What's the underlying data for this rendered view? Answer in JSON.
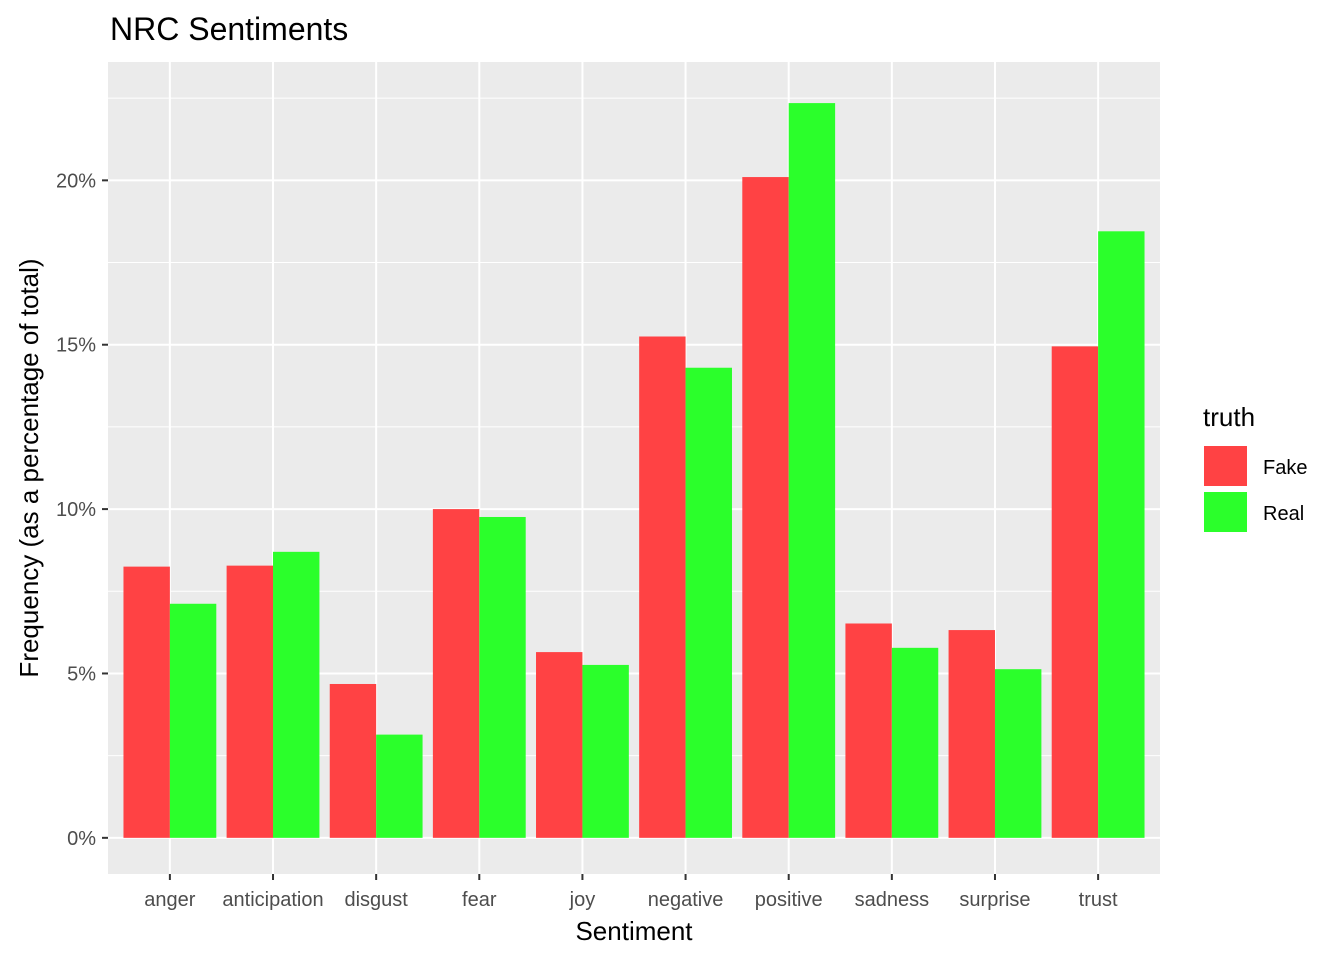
{
  "chart_data": {
    "type": "bar",
    "title": "NRC Sentiments",
    "xlabel": "Sentiment",
    "ylabel": "Frequency (as a percentage of total)",
    "categories": [
      "anger",
      "anticipation",
      "disgust",
      "fear",
      "joy",
      "negative",
      "positive",
      "sadness",
      "surprise",
      "trust"
    ],
    "series": [
      {
        "name": "Fake",
        "color": "#ff4244",
        "values": [
          8.25,
          8.28,
          4.68,
          10.0,
          5.65,
          15.25,
          20.1,
          6.52,
          6.32,
          14.95
        ]
      },
      {
        "name": "Real",
        "color": "#2bff2b",
        "values": [
          7.12,
          8.7,
          3.14,
          9.76,
          5.26,
          14.3,
          22.35,
          5.78,
          5.13,
          18.45
        ]
      }
    ],
    "ylim": [
      -1.1,
      23.6
    ],
    "yticks": [
      0,
      5,
      10,
      15,
      20
    ],
    "ytick_labels": [
      "0%",
      "5%",
      "10%",
      "15%",
      "20%"
    ],
    "grid": true,
    "legend": {
      "title": "truth",
      "position": "right"
    },
    "panel_background": "#ebebeb"
  }
}
